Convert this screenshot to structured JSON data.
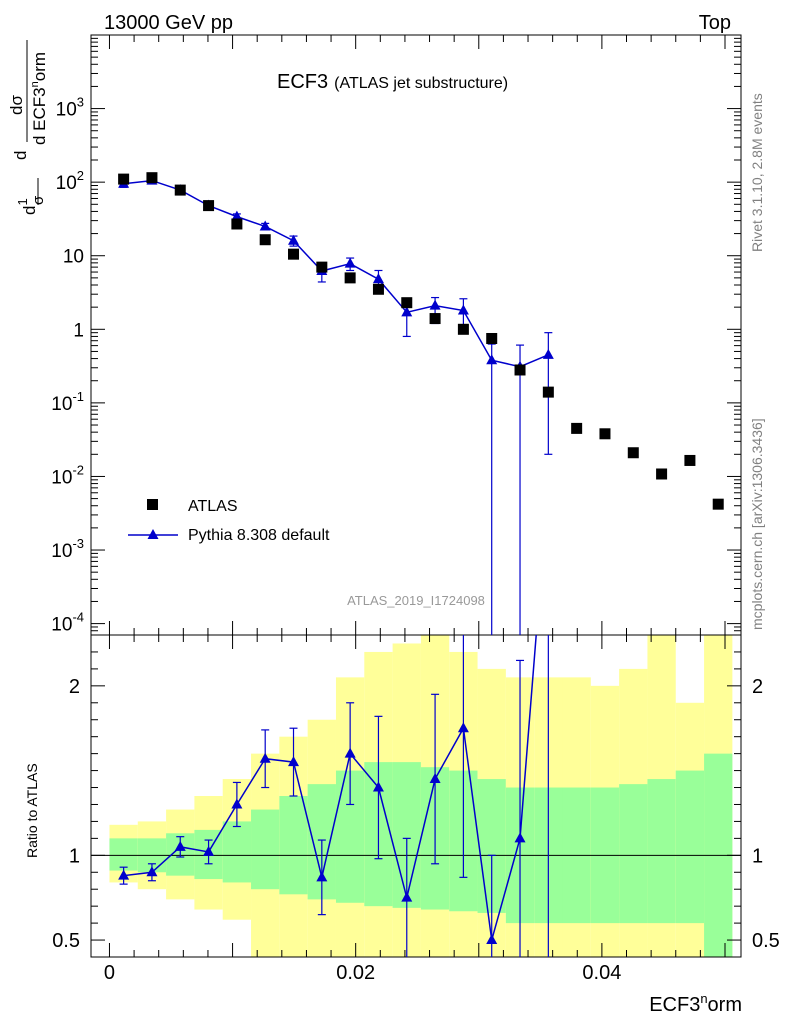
{
  "header": {
    "left": "13000 GeV pp",
    "right": "Top"
  },
  "side_labels": {
    "rivet": "Rivet 3.1.10,  2.8M events",
    "mcplots": "mcplots.cern.ch [arXiv:1306.3436]"
  },
  "chart_data": {
    "type": "scatter",
    "title": "ECF3",
    "subtitle": "(ATLAS jet substructure)",
    "analysis_id": "ATLAS_2019_I1724098",
    "ylabel_main": "1/σ dσ/d ECF3^norm",
    "ylabel_ratio": "Ratio to ATLAS",
    "xlabel": "ECF3^norm",
    "xlim": [
      -0.0015,
      0.0513
    ],
    "ylim_main": [
      7e-05,
      10000
    ],
    "ylog": true,
    "ylim_ratio": [
      0.4,
      2.3
    ],
    "x_ticks": [
      "0",
      "0.02",
      "0.04"
    ],
    "x_tick_values": [
      0,
      0.02,
      0.04
    ],
    "y_ticks_main": [
      "10^-4",
      "10^-3",
      "10^-2",
      "10^-1",
      "1",
      "10",
      "10^2",
      "10^3"
    ],
    "y_tick_values_main": [
      0.0001,
      0.001,
      0.01,
      0.1,
      1,
      10,
      100,
      1000
    ],
    "y_ticks_ratio": [
      "0.5",
      "1",
      "2"
    ],
    "y_tick_values_ratio": [
      0.5,
      1,
      2
    ],
    "legend": {
      "position": "bottom-left",
      "entries": [
        "ATLAS",
        "Pythia 8.308 default"
      ]
    },
    "colors": {
      "data": "#000000",
      "mc": "#0000cc",
      "band_inner": "#99ff99",
      "band_outer": "#ffff99"
    },
    "bin_edges": [
      0,
      0.0023,
      0.0046,
      0.0069,
      0.0092,
      0.0115,
      0.0138,
      0.0161,
      0.0184,
      0.0207,
      0.023,
      0.0253,
      0.0276,
      0.0299,
      0.0322,
      0.0345,
      0.0368,
      0.0391,
      0.0414,
      0.0437,
      0.046,
      0.0483,
      0.0506
    ],
    "x": [
      0.00115,
      0.00345,
      0.00575,
      0.00805,
      0.01035,
      0.01265,
      0.01495,
      0.01725,
      0.01955,
      0.02185,
      0.02415,
      0.02645,
      0.02875,
      0.03105,
      0.03335,
      0.03565,
      0.03795,
      0.04025,
      0.04255,
      0.04485,
      0.04715,
      0.04945
    ],
    "series": [
      {
        "name": "ATLAS",
        "values": [
          110,
          115,
          78,
          48,
          27,
          16.5,
          10.5,
          7.0,
          5.0,
          3.5,
          2.3,
          1.4,
          1.0,
          0.75,
          0.28,
          0.14,
          0.045,
          0.038,
          0.021,
          0.0108,
          0.0165,
          0.0042
        ]
      },
      {
        "name": "Pythia 8.308 default",
        "x": [
          0.00115,
          0.00345,
          0.00575,
          0.00805,
          0.01035,
          0.01265,
          0.01495,
          0.01725,
          0.01955,
          0.02185,
          0.02415,
          0.02645,
          0.02875,
          0.03105,
          0.03335,
          0.03565
        ],
        "values": [
          95,
          105,
          78,
          48,
          34,
          25,
          16,
          6.2,
          7.8,
          4.8,
          1.7,
          2.1,
          1.8,
          0.38,
          0.31,
          0.45
        ],
        "err_low": [
          10,
          10,
          6,
          3,
          3,
          2.5,
          2.5,
          1.8,
          1.5,
          1.5,
          0.9,
          0.9,
          0.9,
          0.38,
          0.31,
          0.43
        ],
        "err_high": [
          10,
          10,
          6,
          3,
          3,
          2.5,
          2.5,
          1.8,
          1.5,
          1.5,
          0.6,
          0.6,
          0.8,
          0.25,
          0.3,
          0.45
        ]
      }
    ],
    "ratio": {
      "values": [
        0.88,
        0.9,
        1.05,
        1.02,
        1.3,
        1.57,
        1.55,
        0.87,
        1.6,
        1.4,
        0.75,
        1.45,
        1.75,
        0.5,
        1.1,
        3.2
      ],
      "err_low": [
        0.05,
        0.05,
        0.06,
        0.07,
        0.13,
        0.17,
        0.2,
        0.22,
        0.3,
        0.42,
        0.4,
        0.5,
        0.88,
        0.5,
        1.1,
        3.2
      ],
      "err_high": [
        0.05,
        0.05,
        0.06,
        0.07,
        0.13,
        0.17,
        0.2,
        0.22,
        0.3,
        0.42,
        0.35,
        0.5,
        0.8,
        0.5,
        1.05,
        2.5
      ],
      "band_inner_low": [
        0.91,
        0.9,
        0.88,
        0.86,
        0.84,
        0.8,
        0.77,
        0.74,
        0.72,
        0.7,
        0.69,
        0.68,
        0.67,
        0.66,
        0.6,
        0.6,
        0.6,
        0.6,
        0.6,
        0.6,
        0.6,
        0.35
      ],
      "band_inner_high": [
        1.1,
        1.1,
        1.13,
        1.15,
        1.2,
        1.27,
        1.35,
        1.42,
        1.5,
        1.55,
        1.55,
        1.52,
        1.5,
        1.45,
        1.4,
        1.4,
        1.4,
        1.4,
        1.42,
        1.45,
        1.5,
        1.6
      ],
      "band_outer_low": [
        0.84,
        0.8,
        0.74,
        0.68,
        0.62,
        0.35,
        0.35,
        0.35,
        0.35,
        0.35,
        0.35,
        0.35,
        0.35,
        0.35,
        0.35,
        0.35,
        0.35,
        0.35,
        0.35,
        0.35,
        0.35,
        0.35
      ],
      "band_outer_high": [
        1.18,
        1.2,
        1.27,
        1.35,
        1.45,
        1.6,
        1.7,
        1.8,
        2.05,
        2.2,
        2.25,
        2.3,
        2.2,
        2.1,
        2.05,
        2.05,
        2.05,
        2.0,
        2.1,
        2.3,
        1.9,
        2.3
      ]
    }
  }
}
